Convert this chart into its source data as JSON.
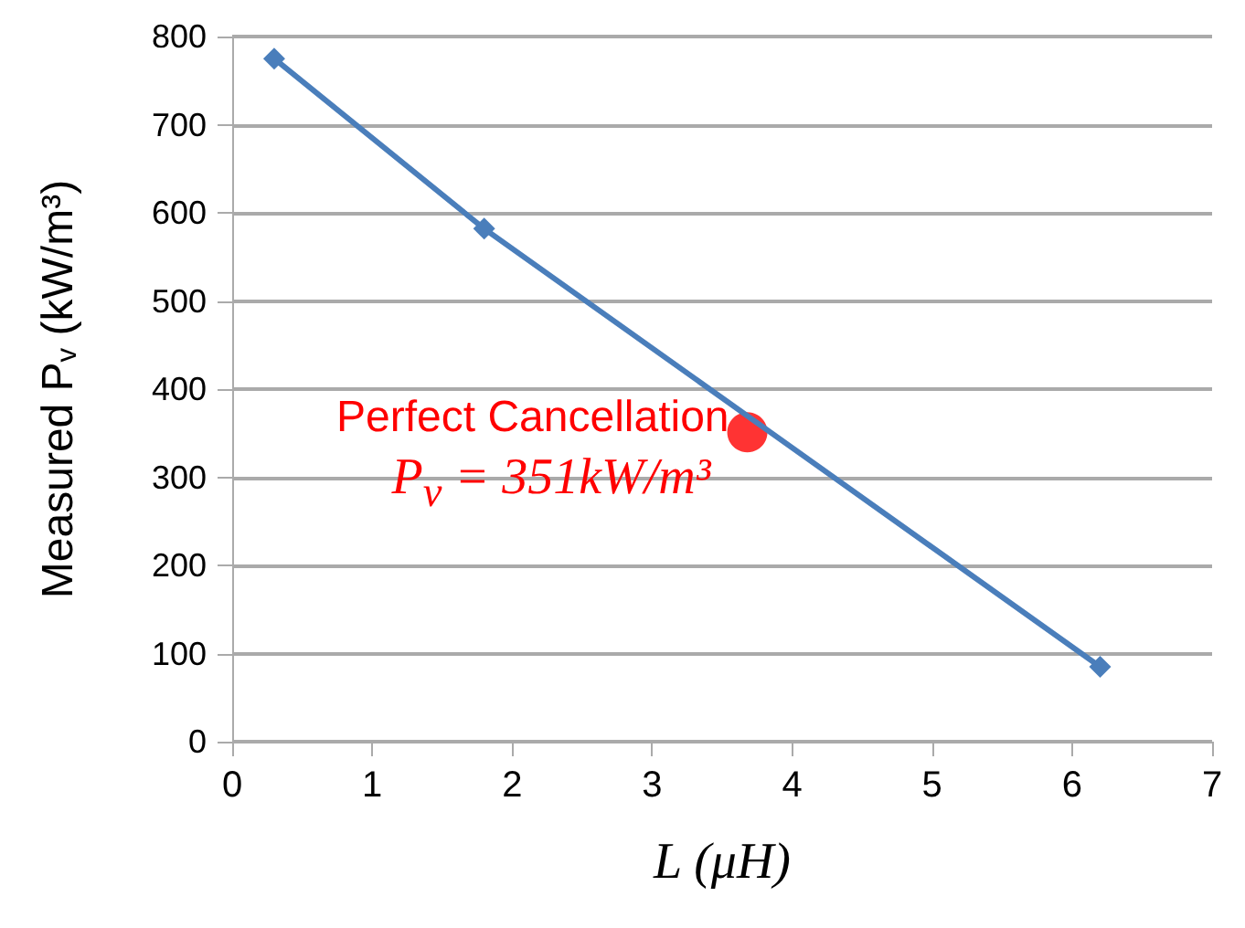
{
  "chart_data": {
    "type": "line",
    "xlabel": "L (μH)",
    "ylabel": "Measured P$_{v}$ (kW/m³)",
    "xlim": [
      0,
      7
    ],
    "xticks": [
      0,
      1,
      2,
      3,
      4,
      5,
      6,
      7
    ],
    "ylim": [
      0,
      800
    ],
    "yticks": [
      0,
      100,
      200,
      300,
      400,
      500,
      600,
      700,
      800
    ],
    "grid": "y",
    "marker": "diamond",
    "line_style": "solid",
    "series": [
      {
        "color": "#4a7ebb",
        "x": [
          0.3,
          1.8,
          6.2
        ],
        "values": [
          775,
          582,
          85
        ]
      },
      {
        "type": "scatter",
        "marker": "circle",
        "color": "#ff0000",
        "x": [
          3.68
        ],
        "values": [
          351
        ]
      }
    ],
    "annotations": [
      {
        "text": "Perfect Cancellation",
        "x": 3.68,
        "y": 351
      },
      {
        "text": "P$_{v}$ = 351kW/m³",
        "x": 3.68,
        "y": 351
      }
    ]
  }
}
